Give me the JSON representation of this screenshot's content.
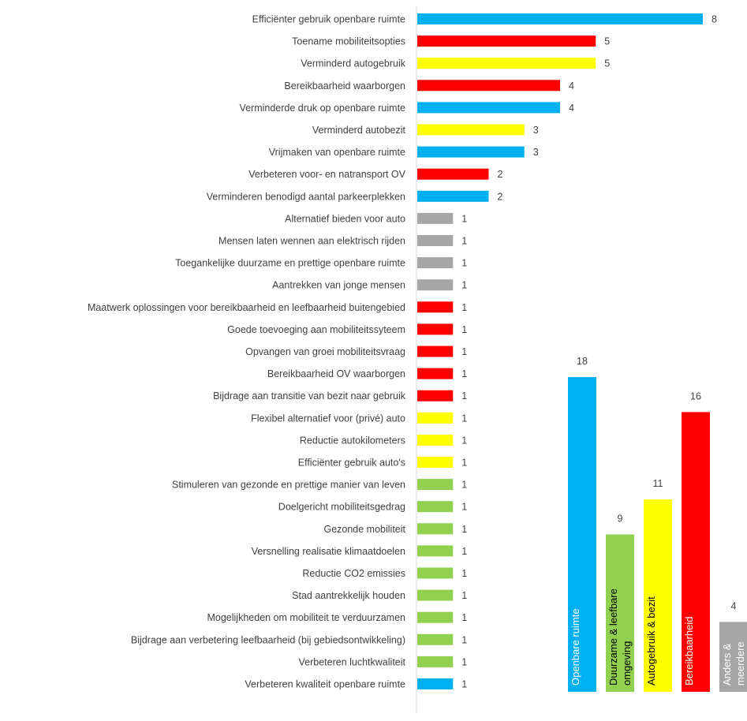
{
  "colors": {
    "blue": "#00B0F0",
    "red": "#FF0000",
    "yellow": "#FFFF00",
    "gray": "#A6A6A6",
    "green": "#92D050",
    "axis": "#D9D9D9",
    "text": "#404040"
  },
  "chart_data": [
    {
      "type": "bar",
      "orientation": "horizontal",
      "xlim": [
        0,
        8
      ],
      "grid": false,
      "categories": [
        "Efficiënter gebruik openbare ruimte",
        "Toename mobiliteitsopties",
        "Verminderd autogebruik",
        "Bereikbaarheid waarborgen",
        "Verminderde druk op openbare ruimte",
        "Verminderd autobezit",
        "Vrijmaken van openbare ruimte",
        "Verbeteren voor- en natransport OV",
        "Verminderen benodigd aantal parkeerplekken",
        "Alternatief bieden voor auto",
        "Mensen laten wennen aan elektrisch rijden",
        "Toegankelijke duurzame en prettige openbare ruimte",
        "Aantrekken van jonge mensen",
        "Maatwerk oplossingen voor bereikbaarheid en leefbaarheid buitengebied",
        "Goede toevoeging aan mobiliteitssyteem",
        "Opvangen van groei mobiliteitsvraag",
        "Bereikbaarheid OV waarborgen",
        "Bijdrage aan transitie van bezit naar gebruik",
        "Flexibel alternatief voor (privé) auto",
        "Reductie autokilometers",
        "Efficiënter gebruik auto's",
        "Stimuleren van gezonde en prettige manier van leven",
        "Doelgericht mobiliteitsgedrag",
        "Gezonde mobiliteit",
        "Versnelling realisatie klimaatdoelen",
        "Reductie CO2 emissies",
        "Stad aantrekkelijk houden",
        "Mogelijkheden om mobiliteit te verduurzamen",
        "Bijdrage aan verbetering leefbaarheid (bij gebiedsontwikkeling)",
        "Verbeteren luchtkwaliteit",
        "Verbeteren kwaliteit openbare ruimte"
      ],
      "values": [
        8,
        5,
        5,
        4,
        4,
        3,
        3,
        2,
        2,
        1,
        1,
        1,
        1,
        1,
        1,
        1,
        1,
        1,
        1,
        1,
        1,
        1,
        1,
        1,
        1,
        1,
        1,
        1,
        1,
        1,
        1
      ],
      "bar_colors": [
        "blue",
        "red",
        "yellow",
        "red",
        "blue",
        "yellow",
        "blue",
        "red",
        "blue",
        "gray",
        "gray",
        "gray",
        "gray",
        "red",
        "red",
        "red",
        "red",
        "red",
        "yellow",
        "yellow",
        "yellow",
        "green",
        "green",
        "green",
        "green",
        "green",
        "green",
        "green",
        "green",
        "green",
        "blue"
      ]
    },
    {
      "type": "bar",
      "orientation": "vertical",
      "ylim": [
        0,
        18
      ],
      "grid": false,
      "categories": [
        [
          "Openbare ruimte"
        ],
        [
          "Duurzame & leefbare",
          "omgeving"
        ],
        [
          "Autogebruik & bezit"
        ],
        [
          "Bereikbaarheid"
        ],
        [
          "Anders &",
          "meerdere"
        ]
      ],
      "values": [
        18,
        9,
        11,
        16,
        4
      ],
      "bar_colors": [
        "blue",
        "green",
        "yellow",
        "red",
        "gray"
      ],
      "label_colors": [
        "#FFFFFF",
        "#000000",
        "#000000",
        "#FFFFFF",
        "#FFFFFF"
      ]
    }
  ]
}
